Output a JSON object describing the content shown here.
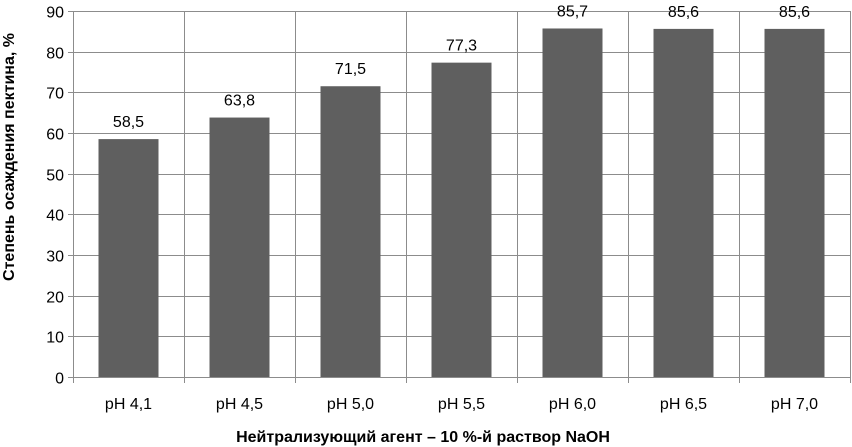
{
  "chart_data": {
    "type": "bar",
    "title": "",
    "xlabel": "Нейтрализующий агент – 10 %-й раствор NaOH",
    "ylabel": "Степень осаждения пектина, %",
    "categories": [
      "pH 4,1",
      "pH 4,5",
      "pH 5,0",
      "pH 5,5",
      "pH 6,0",
      "pH 6,5",
      "pH 7,0"
    ],
    "values": [
      58.5,
      63.8,
      71.5,
      77.3,
      85.7,
      85.6,
      85.6
    ],
    "value_labels": [
      "58,5",
      "63,8",
      "71,5",
      "77,3",
      "85,7",
      "85,6",
      "85,6"
    ],
    "ylim": [
      0,
      90
    ],
    "yticks": [
      "0",
      "10",
      "20",
      "30",
      "40",
      "50",
      "60",
      "70",
      "80",
      "90"
    ],
    "grid": true,
    "legend": "none",
    "colors": {
      "bar": "#5f5f5f",
      "grid": "#8c8c8c"
    }
  }
}
